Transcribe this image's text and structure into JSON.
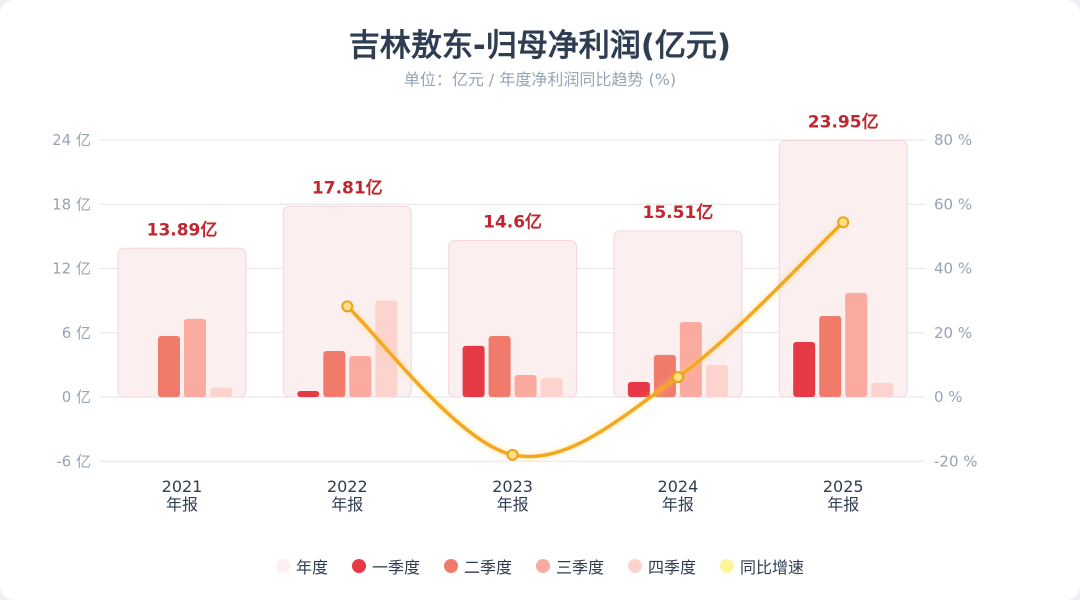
{
  "title": "吉林敖东-归母净利润(亿元)",
  "subtitle": "单位：亿元 / 年度净利润同比趋势 (%)",
  "chart_data": {
    "type": "bar",
    "categories": [
      "2021",
      "2022",
      "2023",
      "2024",
      "2025"
    ],
    "category_sublabel": "年报",
    "annual": {
      "name": "年度",
      "values": [
        13.89,
        17.81,
        14.6,
        15.51,
        23.95
      ],
      "labels": [
        "13.89亿",
        "17.81亿",
        "14.6亿",
        "15.51亿",
        "23.95亿"
      ],
      "color": "#fbeff0"
    },
    "series": [
      {
        "name": "一季度",
        "values": [
          null,
          0.56,
          4.77,
          1.4,
          5.14
        ],
        "color": "#e63946"
      },
      {
        "name": "二季度",
        "values": [
          5.7,
          4.3,
          5.7,
          3.93,
          7.57
        ],
        "color": "#f07b6a"
      },
      {
        "name": "三季度",
        "values": [
          7.3,
          3.83,
          2.06,
          7.0,
          9.72
        ],
        "color": "#fbaa9f"
      },
      {
        "name": "四季度",
        "values": [
          0.89,
          9.0,
          1.78,
          3.0,
          1.31
        ],
        "color": "#fdd3cd"
      }
    ],
    "line": {
      "name": "同比增速",
      "values": [
        null,
        28.2,
        -18.0,
        6.2,
        54.4
      ],
      "color": "#f5a623",
      "legend_color": "#fff59d"
    },
    "y_left": {
      "ylim": [
        -6,
        24
      ],
      "ticks": [
        -6,
        0,
        6,
        12,
        18,
        24
      ],
      "tick_labels": [
        "-6 亿",
        "0 亿",
        "6 亿",
        "12 亿",
        "18 亿",
        "24 亿"
      ]
    },
    "y_right": {
      "ylim": [
        -20,
        80
      ],
      "ticks": [
        -20,
        0,
        20,
        40,
        60,
        80
      ],
      "tick_labels": [
        "-20 %",
        "0 %",
        "20 %",
        "40 %",
        "60 %",
        "80 %"
      ]
    },
    "grid": true,
    "legend_placement": "bottom"
  }
}
